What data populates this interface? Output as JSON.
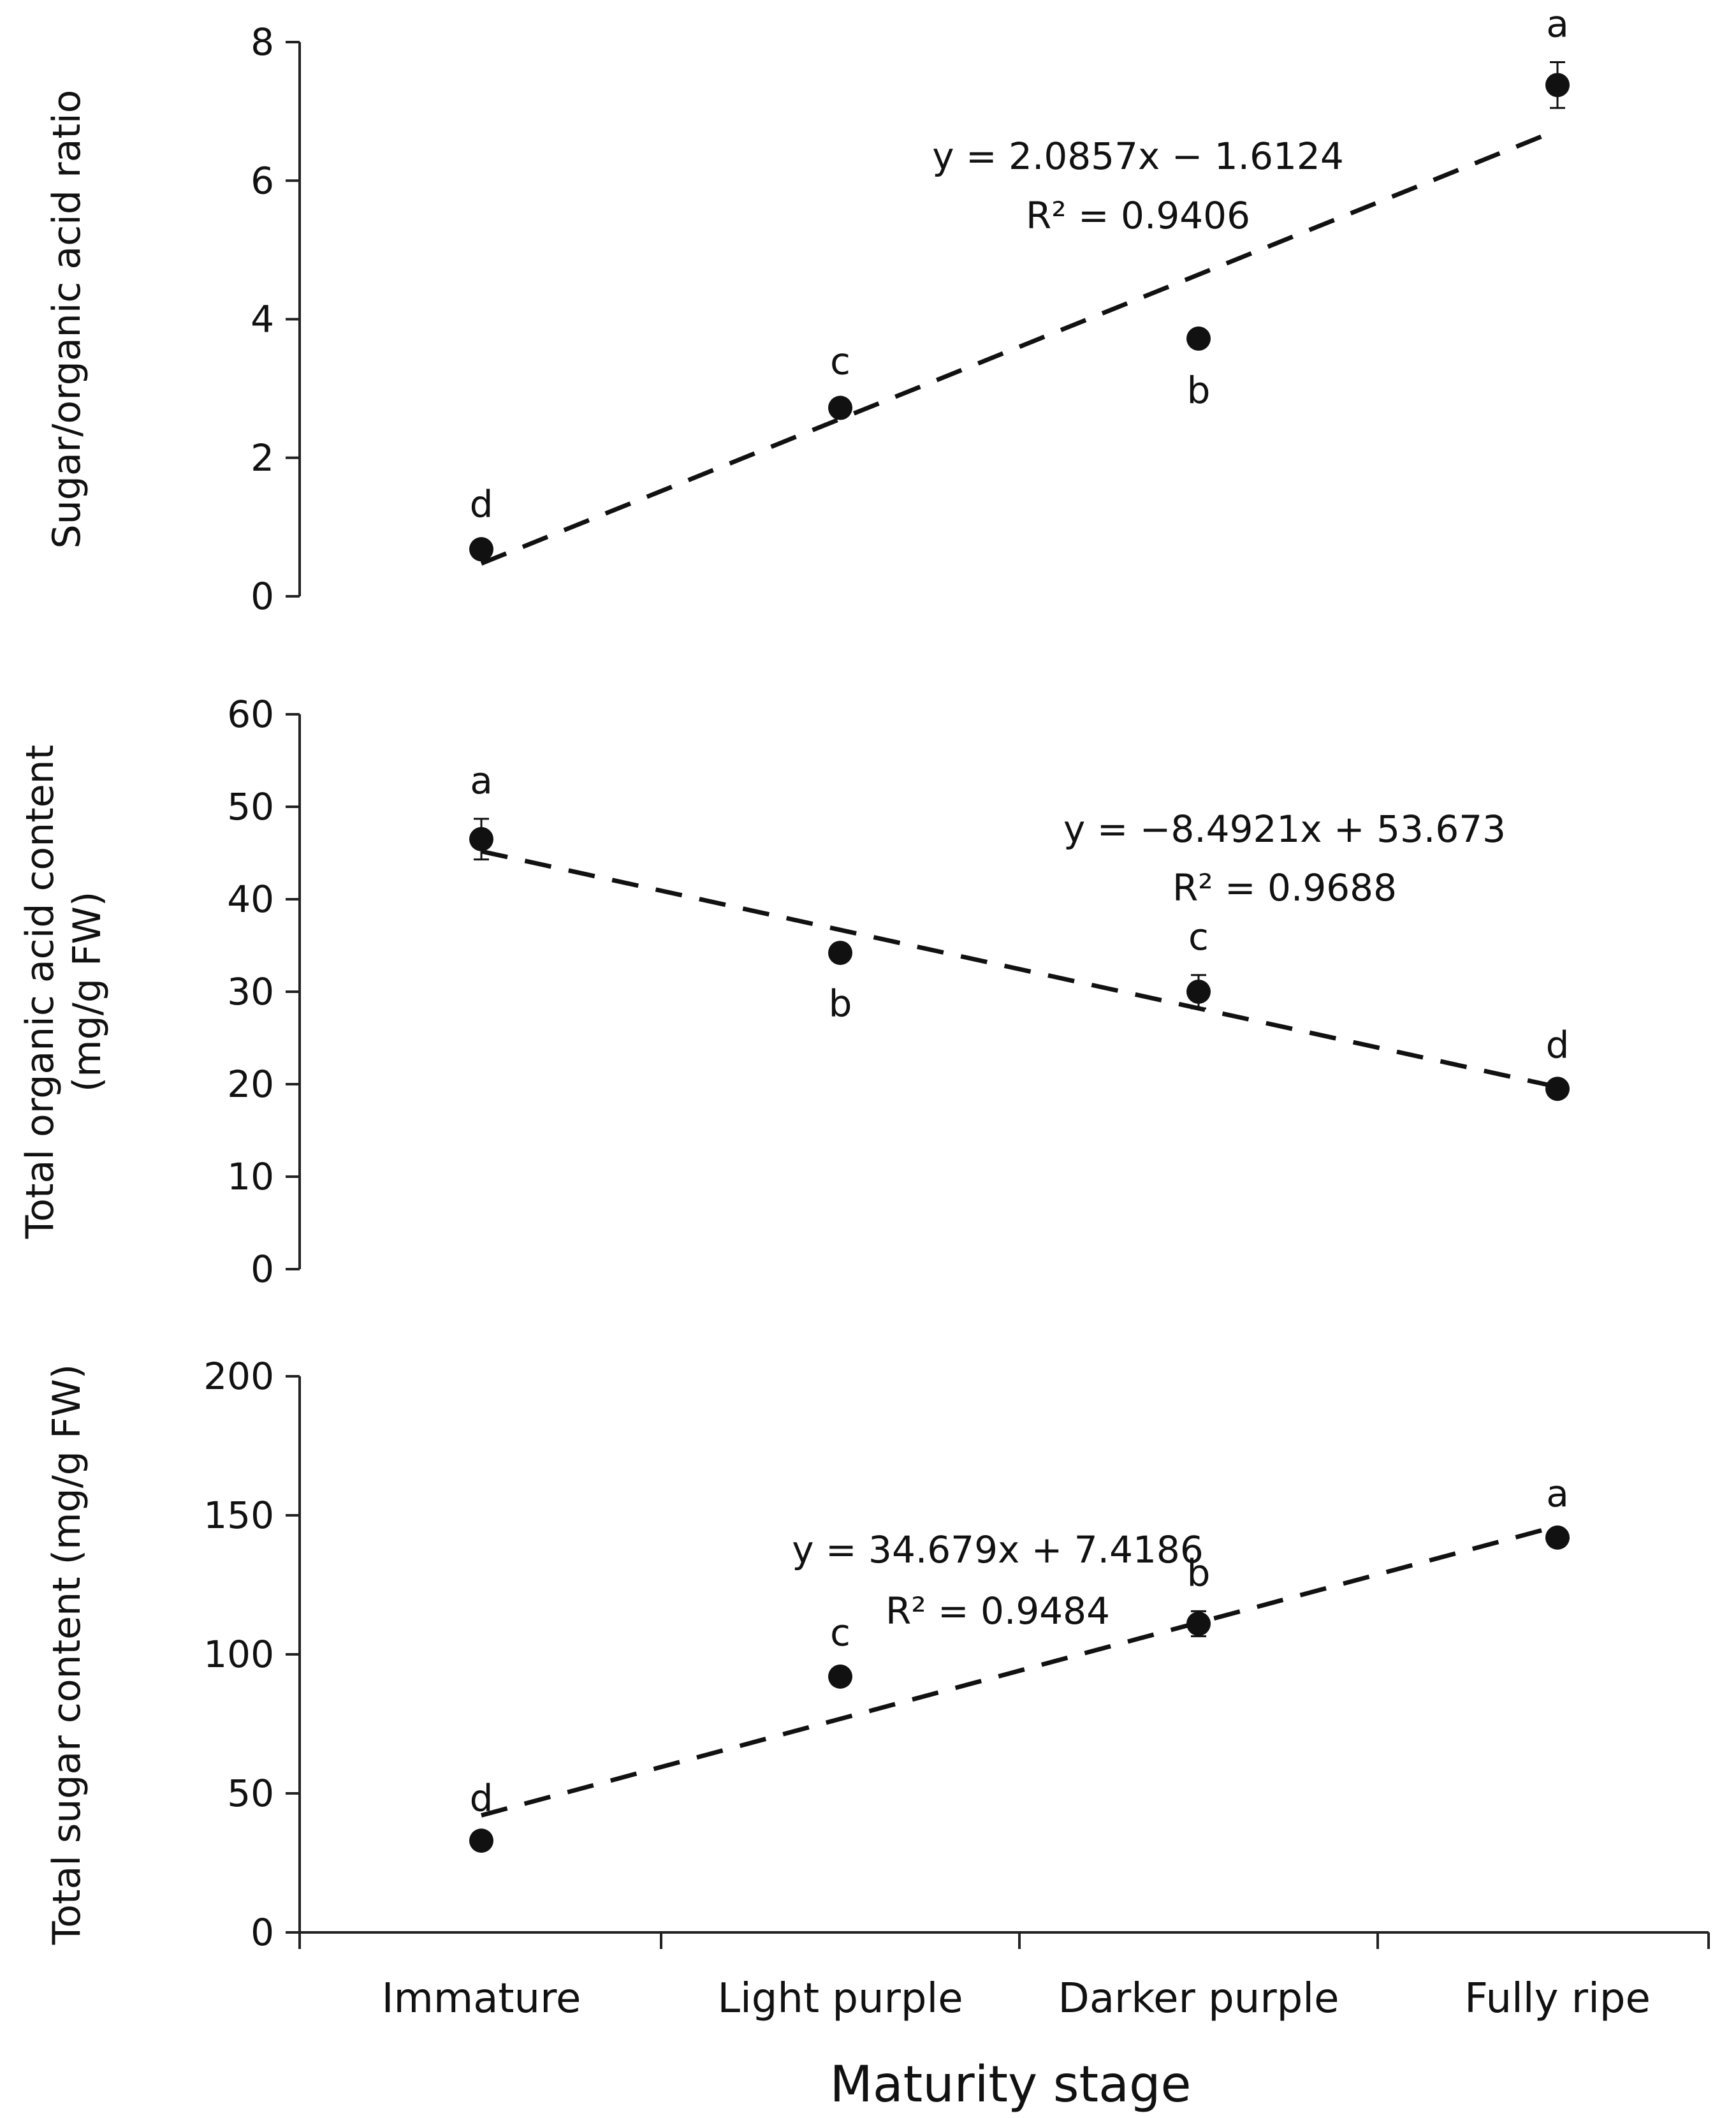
{
  "chart_data": [
    {
      "type": "scatter",
      "title": "",
      "xlabel": "",
      "ylabel_lines": [
        "Sugar/organic acid ratio"
      ],
      "ylim": [
        0,
        8
      ],
      "yticks": [
        0,
        2,
        4,
        6,
        8
      ],
      "categories": [
        "Immature",
        "Light purple",
        "Darker purple",
        "Fully ripe"
      ],
      "series": [
        {
          "name": "Sugar/organic acid ratio",
          "values": [
            0.68,
            2.72,
            3.72,
            7.38
          ],
          "errors": [
            0.1,
            0.12,
            0.12,
            0.33
          ]
        }
      ],
      "letters": [
        "d",
        "c",
        "b",
        "a"
      ],
      "letter_positions": [
        "above",
        "above",
        "below",
        "above"
      ],
      "trendline": {
        "slope": 2.0857,
        "intercept": -1.6124,
        "style": "dashed"
      },
      "equation": "y = 2.0857x − 1.6124",
      "r_squared": "R² = 0.9406"
    },
    {
      "type": "scatter",
      "title": "",
      "xlabel": "",
      "ylabel_lines": [
        "Total organic acid content",
        "(mg/g FW)"
      ],
      "ylim": [
        0,
        60
      ],
      "yticks": [
        0,
        10,
        20,
        30,
        40,
        50,
        60
      ],
      "categories": [
        "Immature",
        "Light purple",
        "Darker purple",
        "Fully ripe"
      ],
      "series": [
        {
          "name": "Total organic acid content",
          "values": [
            46.5,
            34.2,
            30.0,
            19.5
          ],
          "errors": [
            2.2,
            0.8,
            1.8,
            0.6
          ]
        }
      ],
      "letters": [
        "a",
        "b",
        "c",
        "d"
      ],
      "letter_positions": [
        "above",
        "below",
        "above",
        "above"
      ],
      "trendline": {
        "slope": -8.4921,
        "intercept": 53.673,
        "style": "dashed"
      },
      "equation": "y = −8.4921x + 53.673",
      "r_squared": "R² = 0.9688"
    },
    {
      "type": "scatter",
      "title": "",
      "xlabel": "Maturity stage",
      "ylabel_lines": [
        "Total sugar content (mg/g FW)"
      ],
      "ylim": [
        0,
        200
      ],
      "yticks": [
        0,
        50,
        100,
        150,
        200
      ],
      "categories": [
        "Immature",
        "Light purple",
        "Darker purple",
        "Fully ripe"
      ],
      "series": [
        {
          "name": "Total sugar content",
          "values": [
            33,
            92,
            111,
            142
          ],
          "errors": [
            1.5,
            2.0,
            4.5,
            2.0
          ]
        }
      ],
      "letters": [
        "d",
        "c",
        "b",
        "a"
      ],
      "letter_positions": [
        "above",
        "above",
        "above",
        "above"
      ],
      "trendline": {
        "slope": 34.679,
        "intercept": 7.4186,
        "style": "dashed"
      },
      "equation": "y = 34.679x + 7.4186",
      "r_squared": "R² = 0.9484"
    }
  ]
}
